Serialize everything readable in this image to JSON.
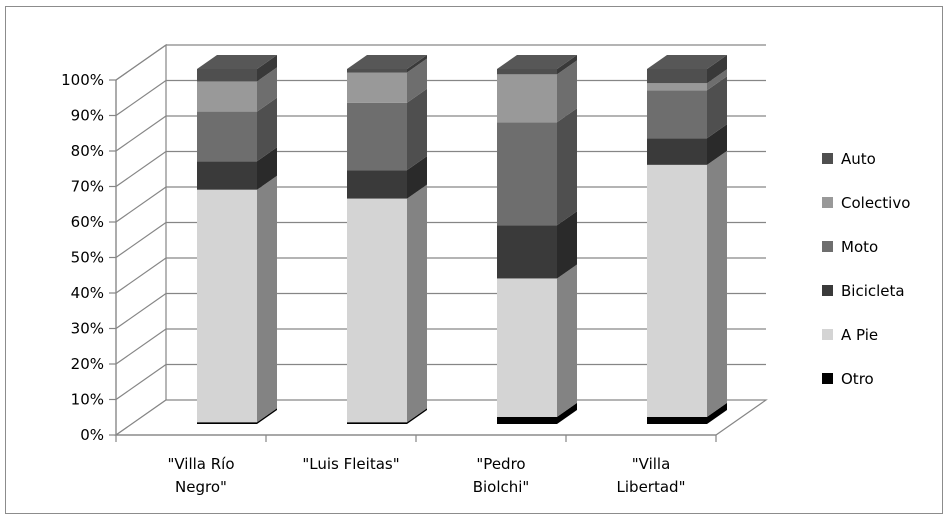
{
  "chart_data": {
    "type": "bar",
    "stacked": true,
    "percent_stacked": true,
    "style": "3d-columns",
    "title": "",
    "xlabel": "",
    "ylabel": "",
    "ylim": [
      0,
      100
    ],
    "yticks": [
      "0%",
      "10%",
      "20%",
      "30%",
      "40%",
      "50%",
      "60%",
      "70%",
      "80%",
      "90%",
      "100%"
    ],
    "categories": [
      [
        "\"Villa Río",
        "Negro\""
      ],
      [
        "\"Luis Fleitas\""
      ],
      [
        "\"Pedro",
        "Biolchi\""
      ],
      [
        "\"Villa",
        "Libertad\""
      ]
    ],
    "series": [
      {
        "name": "Otro",
        "color": "#000000",
        "values": [
          0.5,
          0.5,
          2,
          2
        ]
      },
      {
        "name": "A Pie",
        "color": "#d4d4d4",
        "values": [
          65.5,
          63,
          39,
          71
        ]
      },
      {
        "name": "Bicicleta",
        "color": "#3a3a3a",
        "values": [
          8,
          8,
          15,
          7.5
        ]
      },
      {
        "name": "Moto",
        "color": "#6e6e6e",
        "values": [
          14,
          19,
          29,
          13.5
        ]
      },
      {
        "name": "Colectivo",
        "color": "#999999",
        "values": [
          8.5,
          8.5,
          13.5,
          2
        ]
      },
      {
        "name": "Auto",
        "color": "#4f4f4f",
        "values": [
          3.5,
          1,
          1.5,
          4
        ]
      }
    ],
    "legend": {
      "position": "right",
      "order": [
        "Auto",
        "Colectivo",
        "Moto",
        "Bicicleta",
        "A Pie",
        "Otro"
      ]
    },
    "grid": true
  }
}
